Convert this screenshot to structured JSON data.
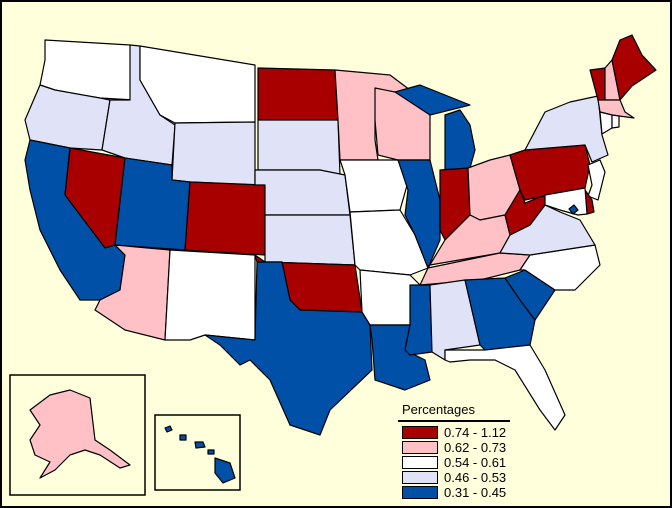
{
  "legend": {
    "title": "Percentages",
    "classes": [
      {
        "label": "0.74 - 1.12",
        "color": "#A80000"
      },
      {
        "label": "0.62 - 0.73",
        "color": "#FFC0C6"
      },
      {
        "label": "0.54 - 0.61",
        "color": "#FFFFFF"
      },
      {
        "label": "0.46 - 0.53",
        "color": "#E0E2F8"
      },
      {
        "label": "0.31 - 0.45",
        "color": "#0050A8"
      }
    ]
  },
  "states": {
    "WA": 2,
    "OR": 3,
    "CA": 4,
    "NV": 0,
    "ID": 3,
    "MT": 2,
    "WY": 3,
    "UT": 4,
    "CO": 0,
    "AZ": 1,
    "NM": 2,
    "ND": 0,
    "SD": 3,
    "NE": 3,
    "KS": 3,
    "OK": 0,
    "TX": 4,
    "MN": 1,
    "IA": 2,
    "MO": 2,
    "AR": 2,
    "LA": 4,
    "WI": 1,
    "IL": 4,
    "MI": 4,
    "IN": 0,
    "OH": 1,
    "KY": 1,
    "TN": 1,
    "MS": 4,
    "AL": 3,
    "GA": 4,
    "FL": 2,
    "SC": 4,
    "NC": 2,
    "VA": 3,
    "WV": 0,
    "PA": 0,
    "NY": 3,
    "VT": 0,
    "NH": 1,
    "ME": 0,
    "MA": 1,
    "CT": 2,
    "RI": 2,
    "NJ": 2,
    "DE": 0,
    "MD": 2,
    "DC": 4,
    "AK": 1,
    "HI": 4
  }
}
